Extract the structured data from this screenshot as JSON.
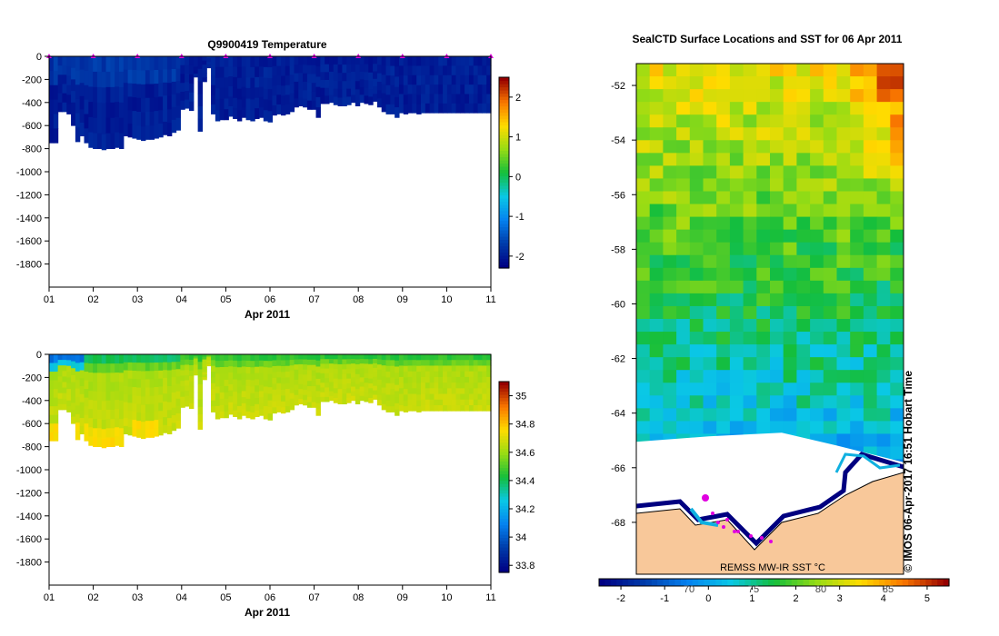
{
  "chart_data": [
    {
      "type": "heatmap",
      "title": "Q9900419  Temperature",
      "xlabel": "Apr 2011",
      "x_ticks": [
        "01",
        "02",
        "03",
        "04",
        "05",
        "06",
        "07",
        "08",
        "09",
        "10",
        "11"
      ],
      "y_ticks": [
        0,
        -200,
        -400,
        -600,
        -800,
        -1000,
        -1200,
        -1400,
        -1600,
        -1800
      ],
      "ylim": [
        -2000,
        0
      ],
      "colorbar_ticks": [
        -2,
        -1,
        0,
        1,
        2
      ],
      "colorbar_range": [
        -2.3,
        2.5
      ],
      "profile_day": [
        0.0,
        0.1,
        0.2,
        0.3,
        0.4,
        0.5,
        0.6,
        0.7,
        0.8,
        0.9,
        1.0,
        1.1,
        1.2,
        1.3,
        1.4,
        1.5,
        1.6,
        1.7,
        1.8,
        1.9,
        2.0,
        2.1,
        2.2,
        2.3,
        2.4,
        2.5,
        2.6,
        2.7,
        2.8,
        2.9,
        3.0,
        3.1,
        3.2,
        3.3,
        3.4,
        3.5,
        3.6,
        3.7,
        3.8,
        3.9,
        4.0,
        4.1,
        4.2,
        4.3,
        4.4,
        4.5,
        4.6,
        4.7,
        4.8,
        4.9,
        5.0,
        5.1,
        5.2,
        5.3,
        5.4,
        5.5,
        5.6,
        5.7,
        5.8,
        5.9,
        6.0,
        6.1,
        6.2,
        6.3,
        6.4,
        6.5,
        6.6,
        6.7,
        6.8,
        6.9,
        7.0,
        7.1,
        7.2,
        7.3,
        7.4,
        7.5,
        7.6,
        7.7,
        7.8,
        7.9,
        8.0,
        8.1,
        8.2,
        8.3,
        8.4,
        8.5,
        8.6,
        8.7,
        8.8,
        8.9,
        9.0,
        9.1,
        9.2,
        9.3,
        9.4,
        9.5,
        9.6,
        9.7,
        9.8,
        9.9,
        10.0
      ],
      "profile_max_depth": [
        750,
        750,
        480,
        480,
        500,
        600,
        740,
        690,
        750,
        790,
        800,
        800,
        810,
        800,
        800,
        790,
        800,
        690,
        700,
        710,
        720,
        730,
        720,
        720,
        710,
        700,
        680,
        690,
        660,
        640,
        460,
        450,
        470,
        180,
        650,
        220,
        100,
        500,
        560,
        550,
        550,
        520,
        540,
        560,
        530,
        550,
        560,
        540,
        530,
        560,
        570,
        510,
        500,
        510,
        500,
        480,
        440,
        430,
        440,
        460,
        460,
        530,
        410,
        410,
        400,
        420,
        430,
        430,
        420,
        400,
        430,
        400,
        410,
        420,
        390,
        440,
        480,
        500,
        500,
        530,
        490,
        500,
        490,
        490,
        500,
        490,
        490,
        490,
        490,
        490,
        490,
        490,
        490,
        490,
        490,
        490,
        490,
        490,
        490,
        490,
        490
      ],
      "surface_markers": [
        "01",
        "02",
        "03",
        "04",
        "05",
        "06",
        "07",
        "08",
        "09",
        "10",
        "11"
      ]
    },
    {
      "type": "heatmap",
      "title": "",
      "xlabel": "Apr 2011",
      "x_ticks": [
        "01",
        "02",
        "03",
        "04",
        "05",
        "06",
        "07",
        "08",
        "09",
        "10",
        "11"
      ],
      "y_ticks": [
        0,
        -200,
        -400,
        -600,
        -800,
        -1000,
        -1200,
        -1400,
        -1600,
        -1800
      ],
      "ylim": [
        -2000,
        0
      ],
      "colorbar_ticks": [
        33.8,
        34,
        34.2,
        34.4,
        34.6,
        34.8,
        35
      ],
      "colorbar_range": [
        33.75,
        35.1
      ]
    },
    {
      "type": "heatmap",
      "title": "SealCTD Surface Locations and SST for 06 Apr 2011",
      "y_ticks": [
        -52,
        -54,
        -56,
        -58,
        -60,
        -62,
        -64,
        -66,
        -68
      ],
      "ylim": [
        -69.9,
        -51.2
      ],
      "colorbar_ticks": [
        -2,
        -1,
        0,
        1,
        2,
        3,
        4,
        5
      ],
      "colorbar_range": [
        -2.5,
        5.5
      ],
      "colorbar_overlay_ticks": [
        "70",
        "75",
        "80",
        "85"
      ],
      "source_label": "REMSS MW-IR SST °C",
      "credit": "© IMOS 06-Apr-2017 16:51 Hobart Time"
    }
  ]
}
